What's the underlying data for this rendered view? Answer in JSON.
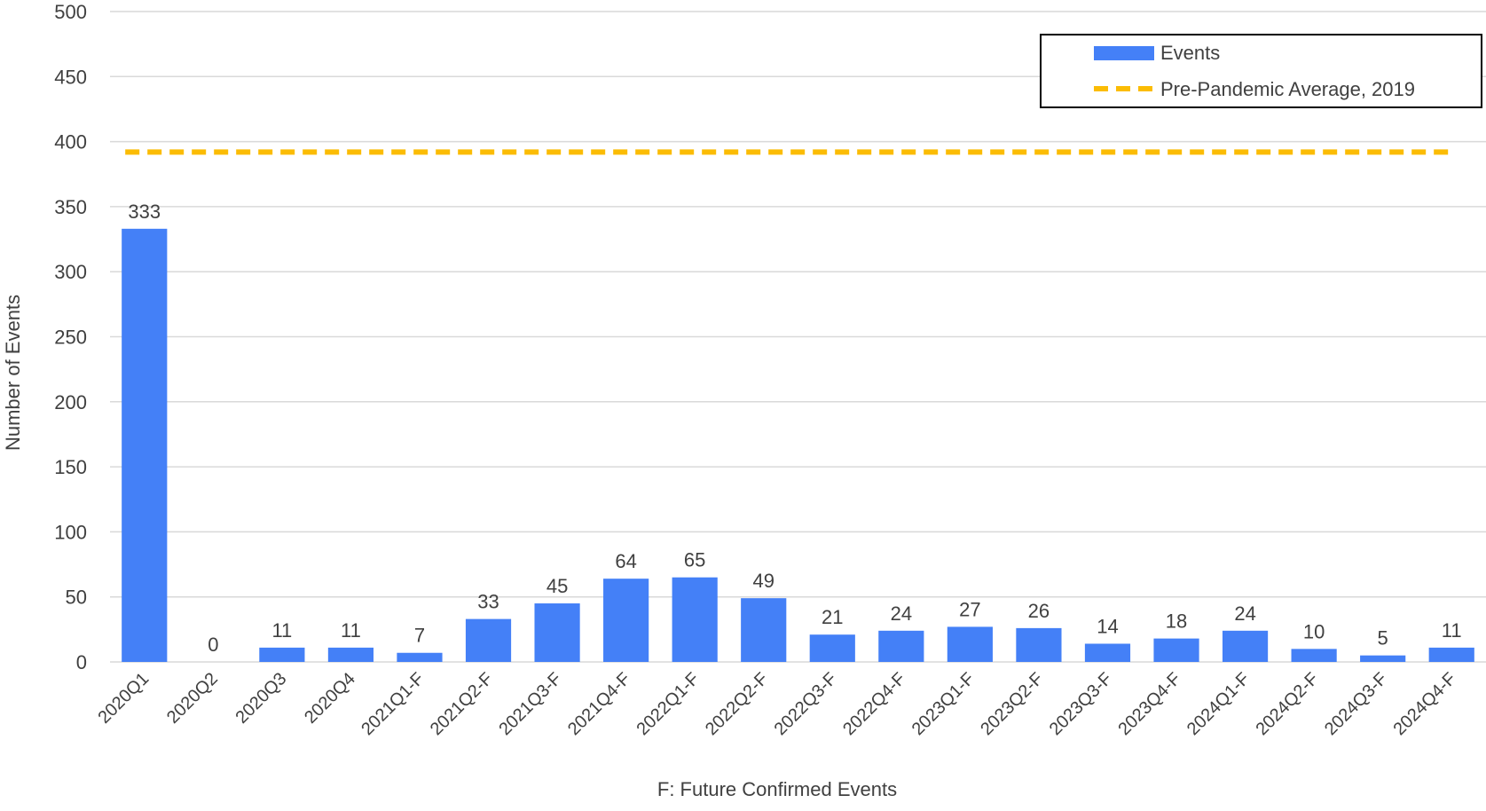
{
  "chart_data": {
    "type": "bar",
    "title": "",
    "xlabel": "F: Future Confirmed Events",
    "ylabel": "Number of Events",
    "ylim": [
      0,
      500
    ],
    "yticks": [
      0,
      50,
      100,
      150,
      200,
      250,
      300,
      350,
      400,
      450,
      500
    ],
    "grid": true,
    "legend_position": "top-right",
    "categories": [
      "2020Q1",
      "2020Q2",
      "2020Q3",
      "2020Q4",
      "2021Q1-F",
      "2021Q2-F",
      "2021Q3-F",
      "2021Q4-F",
      "2022Q1-F",
      "2022Q2-F",
      "2022Q3-F",
      "2022Q4-F",
      "2023Q1-F",
      "2023Q2-F",
      "2023Q3-F",
      "2023Q4-F",
      "2024Q1-F",
      "2024Q2-F",
      "2024Q3-F",
      "2024Q4-F"
    ],
    "series": [
      {
        "name": "Events",
        "type": "bar",
        "color": "#4480f7",
        "values": [
          333,
          0,
          11,
          11,
          7,
          33,
          45,
          64,
          65,
          49,
          21,
          24,
          27,
          26,
          14,
          18,
          24,
          10,
          5,
          11
        ]
      },
      {
        "name": "Pre-Pandemic Average, 2019",
        "type": "line",
        "style": "dashed",
        "color": "#fbbc04",
        "value": 392
      }
    ]
  }
}
